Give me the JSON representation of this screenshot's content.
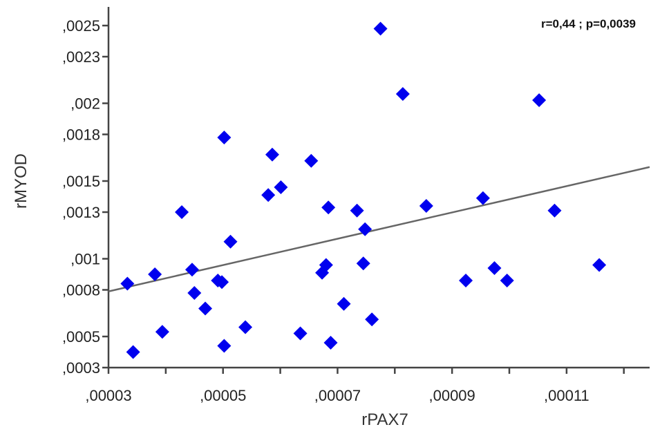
{
  "chart_data": {
    "type": "scatter",
    "xlabel": "rPAX7",
    "ylabel": "rMYOD",
    "annotation": "r=0,44 ; p=0,0039",
    "xlim": [
      3e-05,
      0.0001245
    ],
    "ylim": [
      0.0003,
      0.00262
    ],
    "x_ticks": [
      {
        "value": 3e-05,
        "label": ",00003"
      },
      {
        "value": 5e-05,
        "label": ",00005"
      },
      {
        "value": 7e-05,
        "label": ",00007"
      },
      {
        "value": 9e-05,
        "label": ",00009"
      },
      {
        "value": 0.00011,
        "label": ",00011"
      }
    ],
    "y_ticks": [
      {
        "value": 0.0003,
        "label": ",0003"
      },
      {
        "value": 0.0005,
        "label": ",0005"
      },
      {
        "value": 0.0008,
        "label": ",0008"
      },
      {
        "value": 0.001,
        "label": ",001"
      },
      {
        "value": 0.0013,
        "label": ",0013"
      },
      {
        "value": 0.0015,
        "label": ",0015"
      },
      {
        "value": 0.0018,
        "label": ",0018"
      },
      {
        "value": 0.002,
        "label": ",002"
      },
      {
        "value": 0.0023,
        "label": ",0023"
      },
      {
        "value": 0.0025,
        "label": ",0025"
      }
    ],
    "trendline": {
      "x": [
        3e-05,
        0.0001245
      ],
      "y": [
        0.00079,
        0.00159
      ]
    },
    "marker_color": "#0000ee",
    "trend_color": "#666666",
    "points": [
      {
        "x": 3.33e-05,
        "y": 0.00084
      },
      {
        "x": 3.43e-05,
        "y": 0.0004
      },
      {
        "x": 3.81e-05,
        "y": 0.0009
      },
      {
        "x": 3.94e-05,
        "y": 0.00053
      },
      {
        "x": 4.28e-05,
        "y": 0.0013
      },
      {
        "x": 4.46e-05,
        "y": 0.00093
      },
      {
        "x": 4.5e-05,
        "y": 0.00078
      },
      {
        "x": 4.69e-05,
        "y": 0.00068
      },
      {
        "x": 4.91e-05,
        "y": 0.00086
      },
      {
        "x": 4.98e-05,
        "y": 0.00085
      },
      {
        "x": 5.02e-05,
        "y": 0.00044
      },
      {
        "x": 5.02e-05,
        "y": 0.00178
      },
      {
        "x": 5.13e-05,
        "y": 0.00111
      },
      {
        "x": 5.39e-05,
        "y": 0.00056
      },
      {
        "x": 5.79e-05,
        "y": 0.00141
      },
      {
        "x": 5.86e-05,
        "y": 0.00167
      },
      {
        "x": 6.01e-05,
        "y": 0.00146
      },
      {
        "x": 6.35e-05,
        "y": 0.00052
      },
      {
        "x": 6.54e-05,
        "y": 0.00163
      },
      {
        "x": 6.73e-05,
        "y": 0.00091
      },
      {
        "x": 6.8e-05,
        "y": 0.00096
      },
      {
        "x": 6.84e-05,
        "y": 0.00133
      },
      {
        "x": 6.88e-05,
        "y": 0.00046
      },
      {
        "x": 7.11e-05,
        "y": 0.00071
      },
      {
        "x": 7.34e-05,
        "y": 0.00131
      },
      {
        "x": 7.45e-05,
        "y": 0.00097
      },
      {
        "x": 7.48e-05,
        "y": 0.00119
      },
      {
        "x": 7.6e-05,
        "y": 0.00061
      },
      {
        "x": 7.75e-05,
        "y": 0.00248
      },
      {
        "x": 8.14e-05,
        "y": 0.00206
      },
      {
        "x": 8.55e-05,
        "y": 0.00134
      },
      {
        "x": 9.24e-05,
        "y": 0.00086
      },
      {
        "x": 9.54e-05,
        "y": 0.00139
      },
      {
        "x": 9.74e-05,
        "y": 0.00094
      },
      {
        "x": 9.96e-05,
        "y": 0.00086
      },
      {
        "x": 0.0001052,
        "y": 0.00202
      },
      {
        "x": 0.0001079,
        "y": 0.00131
      },
      {
        "x": 0.0001157,
        "y": 0.00096
      }
    ]
  }
}
